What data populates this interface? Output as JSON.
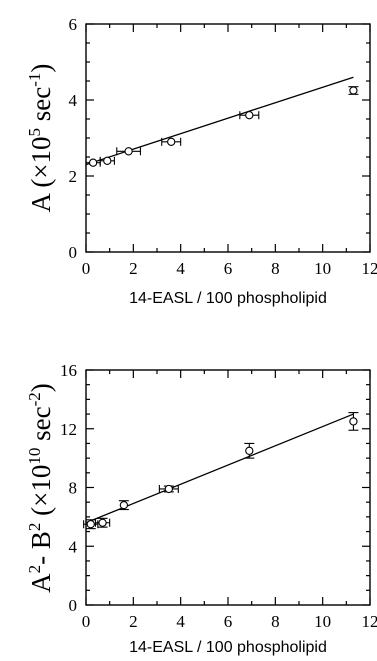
{
  "chart_data": [
    {
      "type": "scatter",
      "title": "",
      "xlabel": "14-EASL / 100 phospholipid",
      "ylabel_main": "A (×10",
      "ylabel_exp": "5",
      "ylabel_unit": " sec",
      "ylabel_unit_exp": "-1",
      "ylabel_close": ")",
      "xlim": [
        0,
        12
      ],
      "ylim": [
        0,
        6
      ],
      "x_ticks": [
        "0",
        "2",
        "4",
        "6",
        "8",
        "10",
        "12"
      ],
      "y_ticks": [
        "0",
        "2",
        "4",
        "6"
      ],
      "x_tick_values": [
        0,
        2,
        4,
        6,
        8,
        10,
        12
      ],
      "y_tick_values": [
        0,
        2,
        4,
        6
      ],
      "y_minor_step": 0.5,
      "grid": false,
      "points": [
        {
          "x": 0.3,
          "y": 2.35,
          "xerr": 0.3,
          "yerr": 0.0
        },
        {
          "x": 0.9,
          "y": 2.4,
          "xerr": 0.3,
          "yerr": 0.0
        },
        {
          "x": 1.8,
          "y": 2.65,
          "xerr": 0.5,
          "yerr": 0.0
        },
        {
          "x": 3.6,
          "y": 2.9,
          "xerr": 0.4,
          "yerr": 0.0
        },
        {
          "x": 6.9,
          "y": 3.6,
          "xerr": 0.4,
          "yerr": 0.0
        },
        {
          "x": 11.3,
          "y": 4.25,
          "xerr": 0.0,
          "yerr": 0.1
        }
      ],
      "fit_line": [
        {
          "x": 0.0,
          "y": 2.3
        },
        {
          "x": 11.3,
          "y": 4.6
        }
      ]
    },
    {
      "type": "scatter",
      "title": "",
      "xlabel": "14-EASL / 100 phospholipid",
      "ylabel_main": "A",
      "ylabel_exp": "2",
      "ylabel_minus": "- B",
      "ylabel_exp2": "2",
      "ylabel_unit": " (×10",
      "ylabel_unit_exp": "10",
      "ylabel_unit2": " sec",
      "ylabel_unit2_exp": "-2",
      "ylabel_close": ")",
      "xlim": [
        0,
        12
      ],
      "ylim": [
        0,
        16
      ],
      "x_ticks": [
        "0",
        "2",
        "4",
        "6",
        "8",
        "10",
        "12"
      ],
      "y_ticks": [
        "0",
        "4",
        "8",
        "12",
        "16"
      ],
      "x_tick_values": [
        0,
        2,
        4,
        6,
        8,
        10,
        12
      ],
      "y_tick_values": [
        0,
        4,
        8,
        12,
        16
      ],
      "y_minor_step": 1,
      "grid": false,
      "points": [
        {
          "x": 0.2,
          "y": 5.5,
          "xerr": 0.3,
          "yerr": 0.3
        },
        {
          "x": 0.7,
          "y": 5.6,
          "xerr": 0.3,
          "yerr": 0.3
        },
        {
          "x": 1.6,
          "y": 6.8,
          "xerr": 0.0,
          "yerr": 0.3
        },
        {
          "x": 3.5,
          "y": 7.9,
          "xerr": 0.4,
          "yerr": 0.2
        },
        {
          "x": 6.9,
          "y": 10.5,
          "xerr": 0.0,
          "yerr": 0.5
        },
        {
          "x": 11.3,
          "y": 12.5,
          "xerr": 0.0,
          "yerr": 0.6
        }
      ],
      "fit_line": [
        {
          "x": 0.0,
          "y": 5.6
        },
        {
          "x": 11.3,
          "y": 13.0
        }
      ]
    }
  ]
}
